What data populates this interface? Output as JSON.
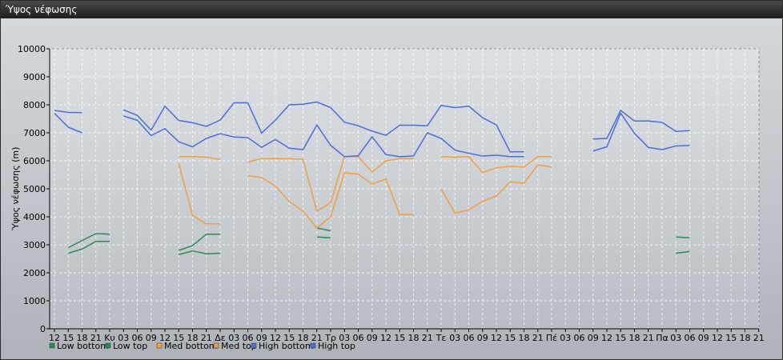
{
  "window": {
    "title": "Ύψος νέφωσης"
  },
  "colors": {
    "low": "#2e8b57",
    "med": "#f0a040",
    "high": "#4a6fd6"
  },
  "chart_data": {
    "type": "line",
    "title": "",
    "xlabel": "",
    "ylabel": "Ύψος νέφωσης (m)",
    "ylim": [
      0,
      10000
    ],
    "yticks": [
      0,
      1000,
      2000,
      3000,
      4000,
      5000,
      6000,
      7000,
      8000,
      9000,
      10000
    ],
    "x_tick_labels": [
      "12",
      "15",
      "18",
      "21",
      "Κυ",
      "03",
      "06",
      "09",
      "12",
      "15",
      "18",
      "21",
      "Δε",
      "03",
      "06",
      "09",
      "12",
      "15",
      "18",
      "21",
      "Τρ",
      "03",
      "06",
      "09",
      "12",
      "15",
      "18",
      "21",
      "Τε",
      "03",
      "06",
      "09",
      "12",
      "15",
      "18",
      "21",
      "Πέ",
      "03",
      "06",
      "09",
      "12",
      "15",
      "18",
      "21",
      "Πα",
      "03",
      "06",
      "09",
      "12",
      "15",
      "18",
      "21"
    ],
    "grid": true,
    "legend": "bottom",
    "series": [
      {
        "name": "Low bottom",
        "color_key": "low",
        "values": [
          null,
          2700,
          2850,
          3120,
          3120,
          null,
          null,
          null,
          null,
          2650,
          2780,
          2680,
          2700,
          null,
          null,
          null,
          null,
          null,
          null,
          3280,
          3250,
          null,
          null,
          null,
          null,
          null,
          null,
          null,
          null,
          null,
          null,
          null,
          null,
          null,
          null,
          null,
          null,
          null,
          null,
          null,
          null,
          null,
          null,
          null,
          null,
          2700,
          2760,
          null,
          null,
          null,
          null,
          null
        ]
      },
      {
        "name": "Low top",
        "color_key": "low",
        "values": [
          null,
          2900,
          3150,
          3400,
          3380,
          null,
          null,
          null,
          null,
          2800,
          2970,
          3380,
          3380,
          null,
          null,
          null,
          null,
          null,
          null,
          3600,
          3500,
          null,
          null,
          null,
          null,
          null,
          null,
          null,
          null,
          null,
          null,
          null,
          null,
          null,
          null,
          null,
          null,
          null,
          null,
          null,
          null,
          null,
          null,
          null,
          null,
          3280,
          3250,
          null,
          null,
          null,
          null,
          null
        ]
      },
      {
        "name": "Med bottom",
        "color_key": "med",
        "values": [
          null,
          null,
          null,
          null,
          null,
          null,
          null,
          null,
          null,
          5900,
          4050,
          3750,
          3750,
          null,
          5470,
          5400,
          5100,
          4550,
          4200,
          3600,
          4000,
          5570,
          5520,
          5170,
          5350,
          4080,
          4080,
          null,
          5000,
          4130,
          4250,
          4550,
          4750,
          5250,
          5200,
          5850,
          5780,
          null,
          null,
          null,
          null,
          null,
          null,
          null,
          null,
          null,
          null,
          null,
          null,
          null,
          null,
          null
        ]
      },
      {
        "name": "Med top",
        "color_key": "med",
        "values": [
          null,
          null,
          null,
          null,
          null,
          null,
          null,
          null,
          null,
          6150,
          6150,
          6130,
          6050,
          null,
          5950,
          6080,
          6080,
          6080,
          6050,
          4200,
          4500,
          6150,
          6150,
          5600,
          6000,
          6080,
          6080,
          null,
          6150,
          6130,
          6150,
          5580,
          5750,
          5800,
          5780,
          6150,
          6150,
          null,
          null,
          null,
          null,
          null,
          null,
          null,
          null,
          null,
          null,
          null,
          null,
          null,
          null,
          null
        ]
      },
      {
        "name": "High bottom",
        "color_key": "high",
        "values": [
          7700,
          7200,
          7000,
          null,
          null,
          7600,
          7450,
          6900,
          7150,
          6680,
          6500,
          6800,
          6970,
          6850,
          6830,
          6480,
          6760,
          6450,
          6400,
          7280,
          6550,
          6150,
          6180,
          6860,
          6220,
          6150,
          6170,
          7000,
          6800,
          6380,
          6270,
          6170,
          6200,
          6150,
          6150,
          null,
          null,
          null,
          null,
          6350,
          6500,
          7700,
          6980,
          6480,
          6400,
          6530,
          6550,
          null,
          null,
          null,
          null,
          null
        ]
      },
      {
        "name": "High top",
        "color_key": "high",
        "values": [
          7800,
          7730,
          7720,
          null,
          null,
          7820,
          7620,
          7100,
          7950,
          7440,
          7360,
          7230,
          7450,
          8070,
          8070,
          6990,
          7450,
          8000,
          8020,
          8100,
          7900,
          7380,
          7250,
          7060,
          6910,
          7270,
          7270,
          7250,
          7980,
          7900,
          7950,
          7540,
          7280,
          6320,
          6320,
          null,
          null,
          null,
          null,
          6780,
          6800,
          7800,
          7420,
          7420,
          7370,
          7050,
          7080,
          null,
          null,
          null,
          null,
          null
        ]
      }
    ]
  }
}
